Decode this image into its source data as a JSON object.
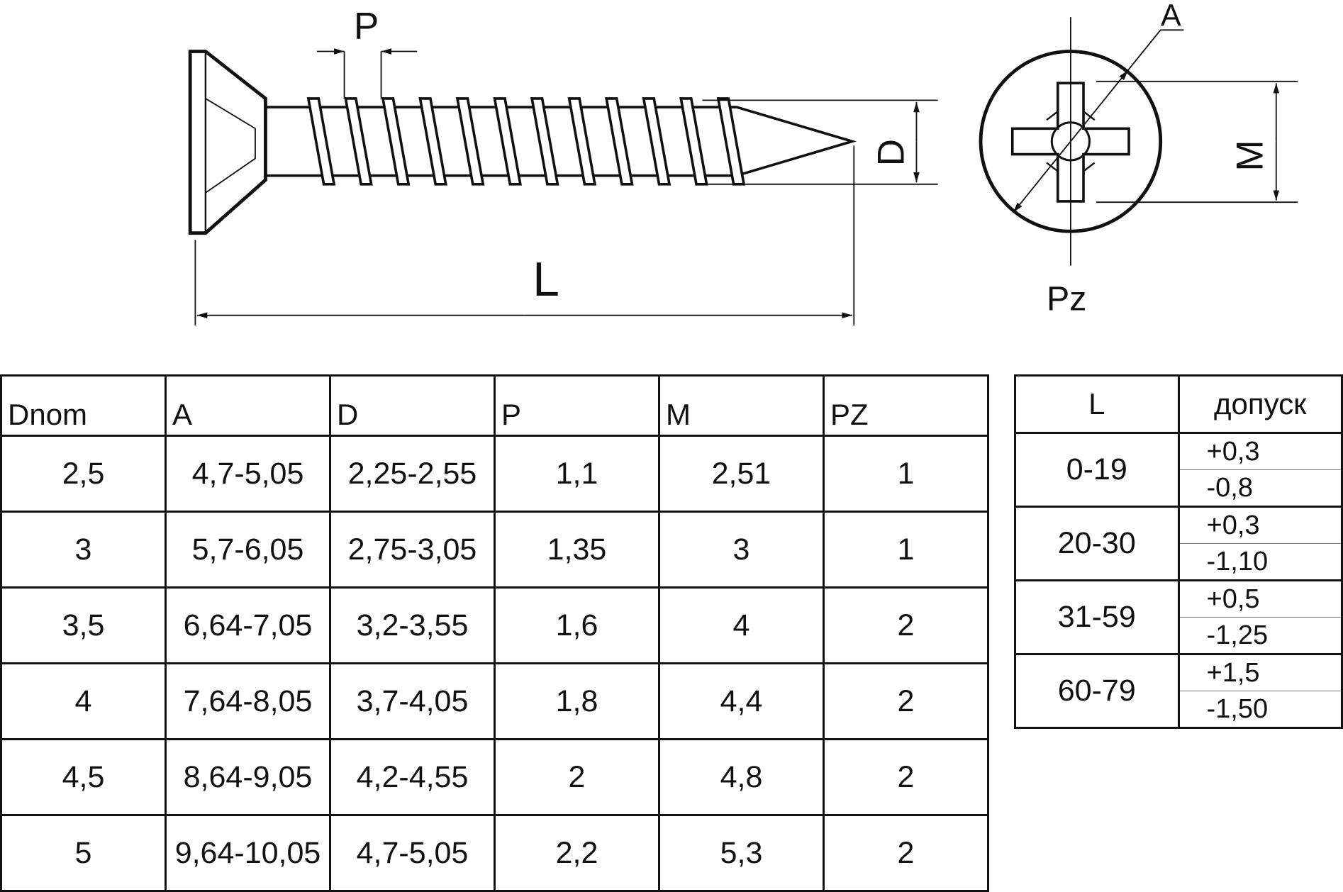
{
  "drawing": {
    "labels": {
      "pitch": "P",
      "diameter": "D",
      "length": "L",
      "head_diameter": "A",
      "recess_width": "M",
      "drive": "Pz"
    }
  },
  "main_table": {
    "headers": [
      "Dnom",
      "A",
      "D",
      "P",
      "M",
      "PZ"
    ],
    "rows": [
      [
        "2,5",
        "4,7-5,05",
        "2,25-2,55",
        "1,1",
        "2,51",
        "1"
      ],
      [
        "3",
        "5,7-6,05",
        "2,75-3,05",
        "1,35",
        "3",
        "1"
      ],
      [
        "3,5",
        "6,64-7,05",
        "3,2-3,55",
        "1,6",
        "4",
        "2"
      ],
      [
        "4",
        "7,64-8,05",
        "3,7-4,05",
        "1,8",
        "4,4",
        "2"
      ],
      [
        "4,5",
        "8,64-9,05",
        "4,2-4,55",
        "2",
        "4,8",
        "2"
      ],
      [
        "5",
        "9,64-10,05",
        "4,7-5,05",
        "2,2",
        "5,3",
        "2"
      ]
    ]
  },
  "tolerance_table": {
    "headers": [
      "L",
      "допуск"
    ],
    "rows": [
      {
        "range": "0-19",
        "plus": "+0,3",
        "minus": "-0,8"
      },
      {
        "range": "20-30",
        "plus": "+0,3",
        "minus": "-1,10"
      },
      {
        "range": "31-59",
        "plus": "+0,5",
        "minus": "-1,25"
      },
      {
        "range": "60-79",
        "plus": "+1,5",
        "minus": "-1,50"
      }
    ]
  }
}
